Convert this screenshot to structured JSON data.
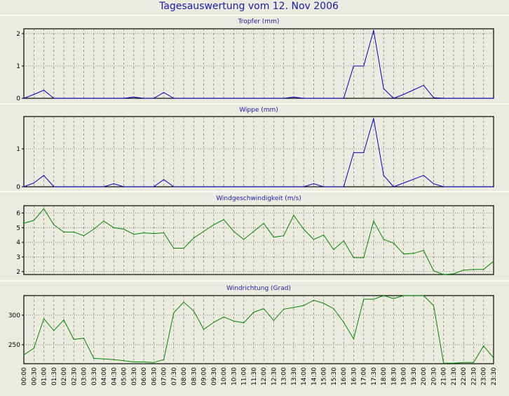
{
  "title": "Tagesauswertung vom 12. Nov 2006",
  "chart_data": [
    {
      "type": "line",
      "title": "Tropfer (mm)",
      "color": "#0000cc",
      "ylim": [
        0,
        2.15
      ],
      "yticks": [
        0,
        1,
        2
      ],
      "x": [
        "00:00",
        "00:30",
        "01:00",
        "01:30",
        "02:00",
        "02:30",
        "03:00",
        "03:30",
        "04:00",
        "04:30",
        "05:00",
        "05:30",
        "06:00",
        "06:30",
        "07:00",
        "07:30",
        "08:00",
        "08:30",
        "09:00",
        "09:30",
        "10:00",
        "10:30",
        "11:00",
        "11:30",
        "12:00",
        "12:30",
        "13:00",
        "13:30",
        "14:00",
        "14:30",
        "15:00",
        "15:30",
        "16:00",
        "16:30",
        "17:00",
        "17:30",
        "18:00",
        "18:30",
        "19:00",
        "19:30",
        "20:00",
        "20:30",
        "21:00",
        "21:30",
        "22:00",
        "22:30",
        "23:00",
        "23:30"
      ],
      "values": [
        0,
        0.12,
        0.25,
        0,
        0,
        0,
        0,
        0,
        0,
        0,
        0,
        0.04,
        0,
        0,
        0.18,
        0,
        0,
        0,
        0,
        0,
        0,
        0,
        0,
        0,
        0,
        0,
        0,
        0.04,
        0,
        0,
        0,
        0,
        0,
        1.0,
        1.0,
        2.1,
        0.3,
        0,
        0.12,
        0.26,
        0.4,
        0.02,
        0,
        0,
        0,
        0,
        0,
        0
      ]
    },
    {
      "type": "line",
      "title": "Wippe (mm)",
      "color": "#0000cc",
      "ylim": [
        0,
        1.85
      ],
      "yticks": [
        0,
        1
      ],
      "x": [
        "00:00",
        "00:30",
        "01:00",
        "01:30",
        "02:00",
        "02:30",
        "03:00",
        "03:30",
        "04:00",
        "04:30",
        "05:00",
        "05:30",
        "06:00",
        "06:30",
        "07:00",
        "07:30",
        "08:00",
        "08:30",
        "09:00",
        "09:30",
        "10:00",
        "10:30",
        "11:00",
        "11:30",
        "12:00",
        "12:30",
        "13:00",
        "13:30",
        "14:00",
        "14:30",
        "15:00",
        "15:30",
        "16:00",
        "16:30",
        "17:00",
        "17:30",
        "18:00",
        "18:30",
        "19:00",
        "19:30",
        "20:00",
        "20:30",
        "21:00",
        "21:30",
        "22:00",
        "22:30",
        "23:00",
        "23:30"
      ],
      "values": [
        0,
        0.1,
        0.3,
        0,
        0,
        0,
        0,
        0,
        0,
        0.08,
        0,
        0,
        0,
        0,
        0.19,
        0,
        0,
        0,
        0,
        0,
        0,
        0,
        0,
        0,
        0,
        0,
        0,
        0,
        0,
        0.08,
        0,
        0,
        0,
        0.9,
        0.9,
        1.8,
        0.3,
        0,
        0.1,
        0.2,
        0.3,
        0.08,
        0,
        0,
        0,
        0,
        0,
        0
      ]
    },
    {
      "type": "line",
      "title": "Windgeschwindigkeit (m/s)",
      "color": "#008800",
      "ylim": [
        1.8,
        6.5
      ],
      "yticks": [
        2,
        3,
        4,
        5,
        6
      ],
      "x": [
        "00:00",
        "00:30",
        "01:00",
        "01:30",
        "02:00",
        "02:30",
        "03:00",
        "03:30",
        "04:00",
        "04:30",
        "05:00",
        "05:30",
        "06:00",
        "06:30",
        "07:00",
        "07:30",
        "08:00",
        "08:30",
        "09:00",
        "09:30",
        "10:00",
        "10:30",
        "11:00",
        "11:30",
        "12:00",
        "12:30",
        "13:00",
        "13:30",
        "14:00",
        "14:30",
        "15:00",
        "15:30",
        "16:00",
        "16:30",
        "17:00",
        "17:30",
        "18:00",
        "18:30",
        "19:00",
        "19:30",
        "20:00",
        "20:30",
        "21:00",
        "21:30",
        "22:00",
        "22:30",
        "23:00",
        "23:30"
      ],
      "values": [
        5.3,
        5.5,
        6.3,
        5.2,
        4.7,
        4.7,
        4.45,
        4.9,
        5.45,
        5.0,
        4.9,
        4.55,
        4.65,
        4.6,
        4.65,
        3.6,
        3.6,
        4.3,
        4.75,
        5.2,
        5.55,
        4.75,
        4.2,
        4.75,
        5.3,
        4.35,
        4.45,
        5.85,
        4.9,
        4.2,
        4.5,
        3.5,
        4.1,
        2.95,
        2.95,
        5.45,
        4.2,
        3.95,
        3.2,
        3.25,
        3.45,
        2.05,
        1.8,
        1.85,
        2.1,
        2.15,
        2.15,
        2.7
      ]
    },
    {
      "type": "line",
      "title": "Windrichtung (Grad)",
      "color": "#008800",
      "ylim": [
        218,
        333
      ],
      "yticks": [
        250,
        300
      ],
      "x": [
        "00:00",
        "00:30",
        "01:00",
        "01:30",
        "02:00",
        "02:30",
        "03:00",
        "03:30",
        "04:00",
        "04:30",
        "05:00",
        "05:30",
        "06:00",
        "06:30",
        "07:00",
        "07:30",
        "08:00",
        "08:30",
        "09:00",
        "09:30",
        "10:00",
        "10:30",
        "11:00",
        "11:30",
        "12:00",
        "12:30",
        "13:00",
        "13:30",
        "14:00",
        "14:30",
        "15:00",
        "15:30",
        "16:00",
        "16:30",
        "17:00",
        "17:30",
        "18:00",
        "18:30",
        "19:00",
        "19:30",
        "20:00",
        "20:30",
        "21:00",
        "21:30",
        "22:00",
        "22:30",
        "23:00",
        "23:30"
      ],
      "values": [
        233,
        244,
        294,
        274,
        292,
        259,
        261,
        227,
        226,
        225,
        223,
        221,
        221,
        220,
        225,
        304,
        322,
        307,
        276,
        288,
        297,
        290,
        287,
        305,
        311,
        291,
        310,
        313,
        316,
        325,
        320,
        311,
        288,
        260,
        327,
        327,
        333,
        328,
        333,
        333,
        333,
        316,
        219,
        219,
        220,
        220,
        248,
        228
      ]
    }
  ]
}
